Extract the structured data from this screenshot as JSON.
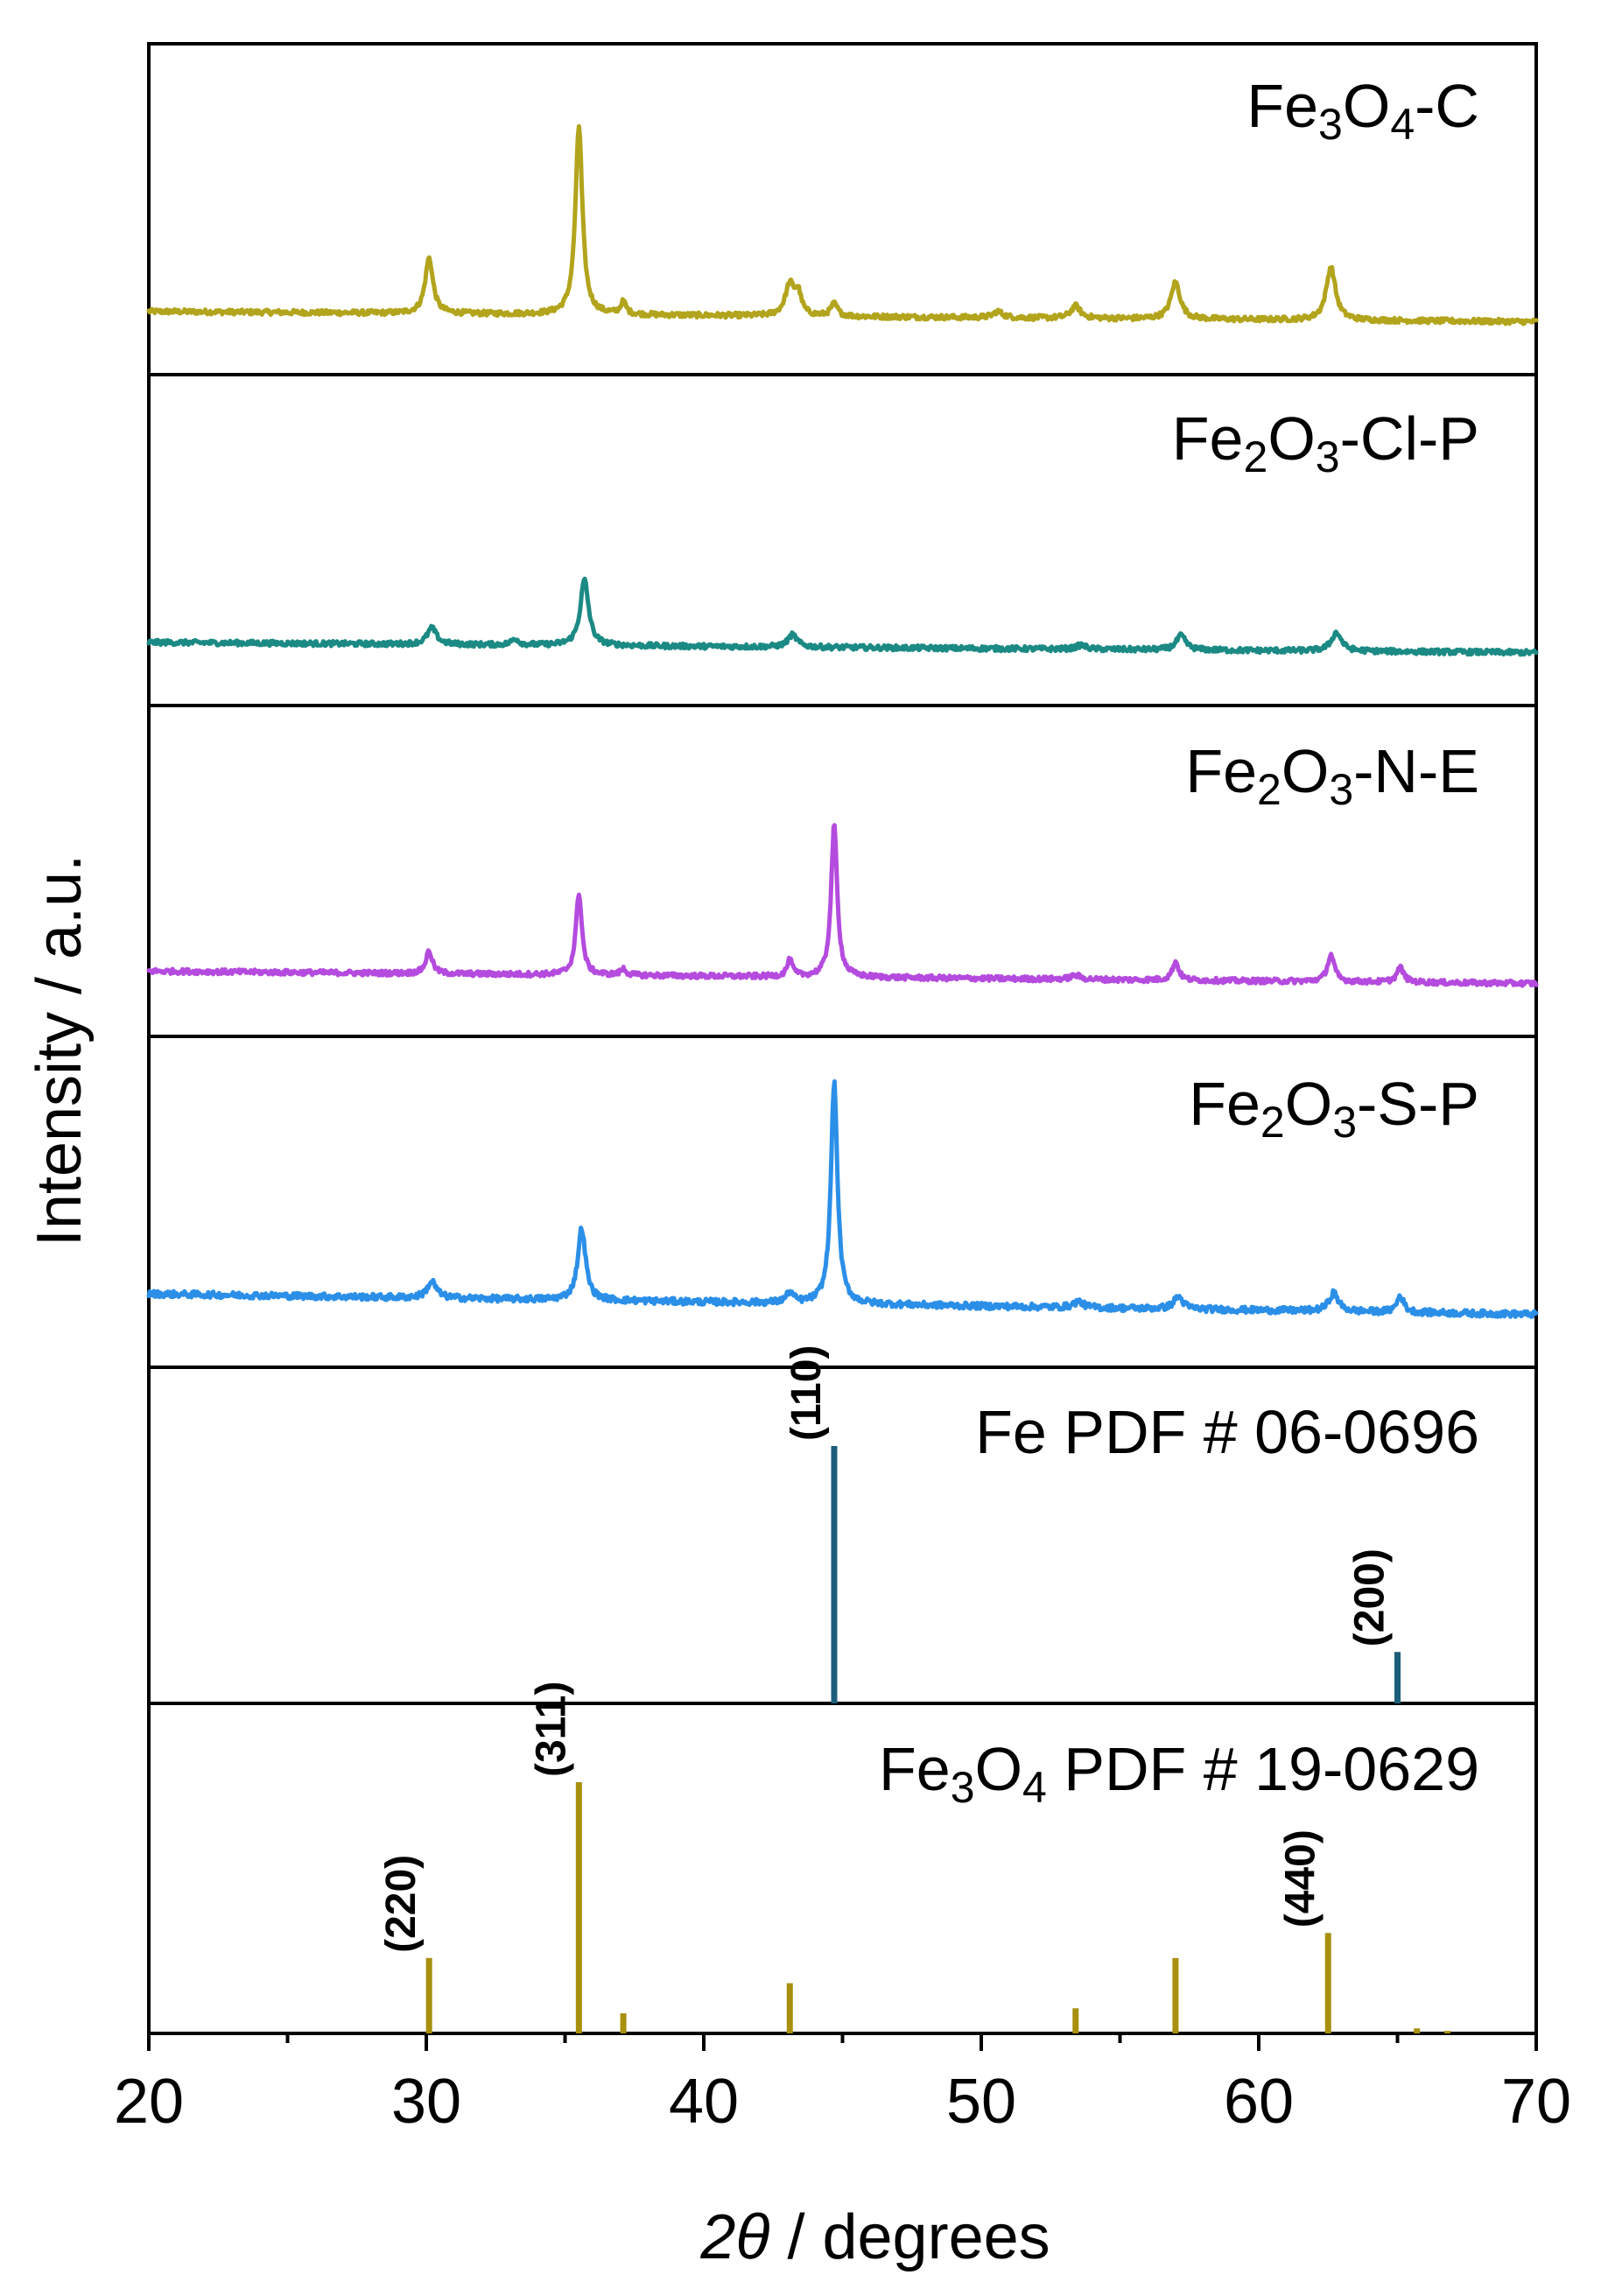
{
  "chart_data": {
    "type": "line",
    "xlabel": {
      "italic": "2θ",
      "rest": " / degrees"
    },
    "ylabel": "Intensity / a.u.",
    "xlim": [
      20,
      70
    ],
    "xticks": [
      20,
      30,
      40,
      50,
      60,
      70
    ],
    "minor_xticks": [
      25,
      35,
      45,
      55,
      65
    ],
    "stacked_panels": true,
    "series": [
      {
        "name": "Fe3O4-C",
        "label_parts": [
          [
            "Fe",
            ""
          ],
          [
            "3",
            "sub"
          ],
          [
            "O",
            ""
          ],
          [
            "4",
            "sub"
          ],
          [
            "-C",
            ""
          ]
        ],
        "color": "#b2a41c",
        "baseline": 0.05,
        "noise": 0.012,
        "peaks": [
          {
            "x": 30.1,
            "h": 0.27,
            "w": 0.17
          },
          {
            "x": 35.5,
            "h": 0.92,
            "w": 0.15
          },
          {
            "x": 37.1,
            "h": 0.06,
            "w": 0.12
          },
          {
            "x": 43.1,
            "h": 0.15,
            "w": 0.2
          },
          {
            "x": 43.4,
            "h": 0.1,
            "w": 0.14
          },
          {
            "x": 44.7,
            "h": 0.06,
            "w": 0.15
          },
          {
            "x": 50.6,
            "h": 0.03,
            "w": 0.2
          },
          {
            "x": 53.4,
            "h": 0.06,
            "w": 0.2
          },
          {
            "x": 57.0,
            "h": 0.18,
            "w": 0.2
          },
          {
            "x": 62.6,
            "h": 0.26,
            "w": 0.2
          }
        ]
      },
      {
        "name": "Fe2O3-Cl-P",
        "label_parts": [
          [
            "Fe",
            ""
          ],
          [
            "2",
            "sub"
          ],
          [
            "O",
            ""
          ],
          [
            "3",
            "sub"
          ],
          [
            "-Cl-P",
            ""
          ]
        ],
        "color": "#1c8a84",
        "baseline": 0.05,
        "noise": 0.012,
        "peaks": [
          {
            "x": 30.2,
            "h": 0.08,
            "w": 0.2
          },
          {
            "x": 33.2,
            "h": 0.03,
            "w": 0.15
          },
          {
            "x": 35.7,
            "h": 0.32,
            "w": 0.18
          },
          {
            "x": 43.2,
            "h": 0.06,
            "w": 0.2
          },
          {
            "x": 53.6,
            "h": 0.02,
            "w": 0.2
          },
          {
            "x": 57.2,
            "h": 0.07,
            "w": 0.2
          },
          {
            "x": 62.8,
            "h": 0.09,
            "w": 0.22
          }
        ]
      },
      {
        "name": "Fe2O3-N-E",
        "label_parts": [
          [
            "Fe",
            ""
          ],
          [
            "2",
            "sub"
          ],
          [
            "O",
            ""
          ],
          [
            "3",
            "sub"
          ],
          [
            "-N-E",
            ""
          ]
        ],
        "color": "#b44bde",
        "baseline": 0.06,
        "noise": 0.012,
        "peaks": [
          {
            "x": 30.1,
            "h": 0.11,
            "w": 0.14
          },
          {
            "x": 35.5,
            "h": 0.4,
            "w": 0.13
          },
          {
            "x": 37.1,
            "h": 0.03,
            "w": 0.12
          },
          {
            "x": 43.1,
            "h": 0.08,
            "w": 0.12
          },
          {
            "x": 44.7,
            "h": 0.74,
            "w": 0.13
          },
          {
            "x": 53.4,
            "h": 0.02,
            "w": 0.2
          },
          {
            "x": 57.0,
            "h": 0.09,
            "w": 0.14
          },
          {
            "x": 62.6,
            "h": 0.13,
            "w": 0.15
          },
          {
            "x": 65.1,
            "h": 0.07,
            "w": 0.15
          }
        ]
      },
      {
        "name": "Fe2O3-S-P",
        "label_parts": [
          [
            "Fe",
            ""
          ],
          [
            "2",
            "sub"
          ],
          [
            "O",
            ""
          ],
          [
            "3",
            "sub"
          ],
          [
            "-S-P",
            ""
          ]
        ],
        "color": "#2b8fe8",
        "baseline": 0.1,
        "noise": 0.015,
        "peaks": [
          {
            "x": 30.2,
            "h": 0.08,
            "w": 0.2
          },
          {
            "x": 35.6,
            "h": 0.35,
            "w": 0.17
          },
          {
            "x": 43.1,
            "h": 0.05,
            "w": 0.15
          },
          {
            "x": 44.7,
            "h": 1.08,
            "w": 0.14
          },
          {
            "x": 53.5,
            "h": 0.03,
            "w": 0.2
          },
          {
            "x": 57.1,
            "h": 0.06,
            "w": 0.2
          },
          {
            "x": 62.7,
            "h": 0.09,
            "w": 0.2
          },
          {
            "x": 65.1,
            "h": 0.08,
            "w": 0.15
          }
        ]
      }
    ],
    "references": [
      {
        "name": "Fe PDF # 06-0696",
        "label_parts": [
          [
            "Fe PDF # 06-0696",
            ""
          ]
        ],
        "color": "#1b5d7a",
        "lines": [
          {
            "x": 44.7,
            "h": 1.0,
            "hkl": "(110)"
          },
          {
            "x": 65.0,
            "h": 0.2,
            "hkl": "(200)"
          }
        ]
      },
      {
        "name": "Fe3O4 PDF # 19-0629",
        "label_parts": [
          [
            "Fe",
            ""
          ],
          [
            "3",
            "sub"
          ],
          [
            "O",
            ""
          ],
          [
            "4",
            "sub"
          ],
          [
            " PDF # 19-0629",
            ""
          ]
        ],
        "color": "#a8900e",
        "lines": [
          {
            "x": 30.1,
            "h": 0.3,
            "hkl": "(220)"
          },
          {
            "x": 35.5,
            "h": 1.0,
            "hkl": "(311)"
          },
          {
            "x": 37.1,
            "h": 0.08,
            "hkl": ""
          },
          {
            "x": 43.1,
            "h": 0.2,
            "hkl": ""
          },
          {
            "x": 53.4,
            "h": 0.1,
            "hkl": ""
          },
          {
            "x": 57.0,
            "h": 0.3,
            "hkl": ""
          },
          {
            "x": 62.5,
            "h": 0.4,
            "hkl": "(440)"
          },
          {
            "x": 65.7,
            "h": 0.02,
            "hkl": ""
          },
          {
            "x": 66.8,
            "h": 0.01,
            "hkl": ""
          }
        ]
      }
    ]
  }
}
